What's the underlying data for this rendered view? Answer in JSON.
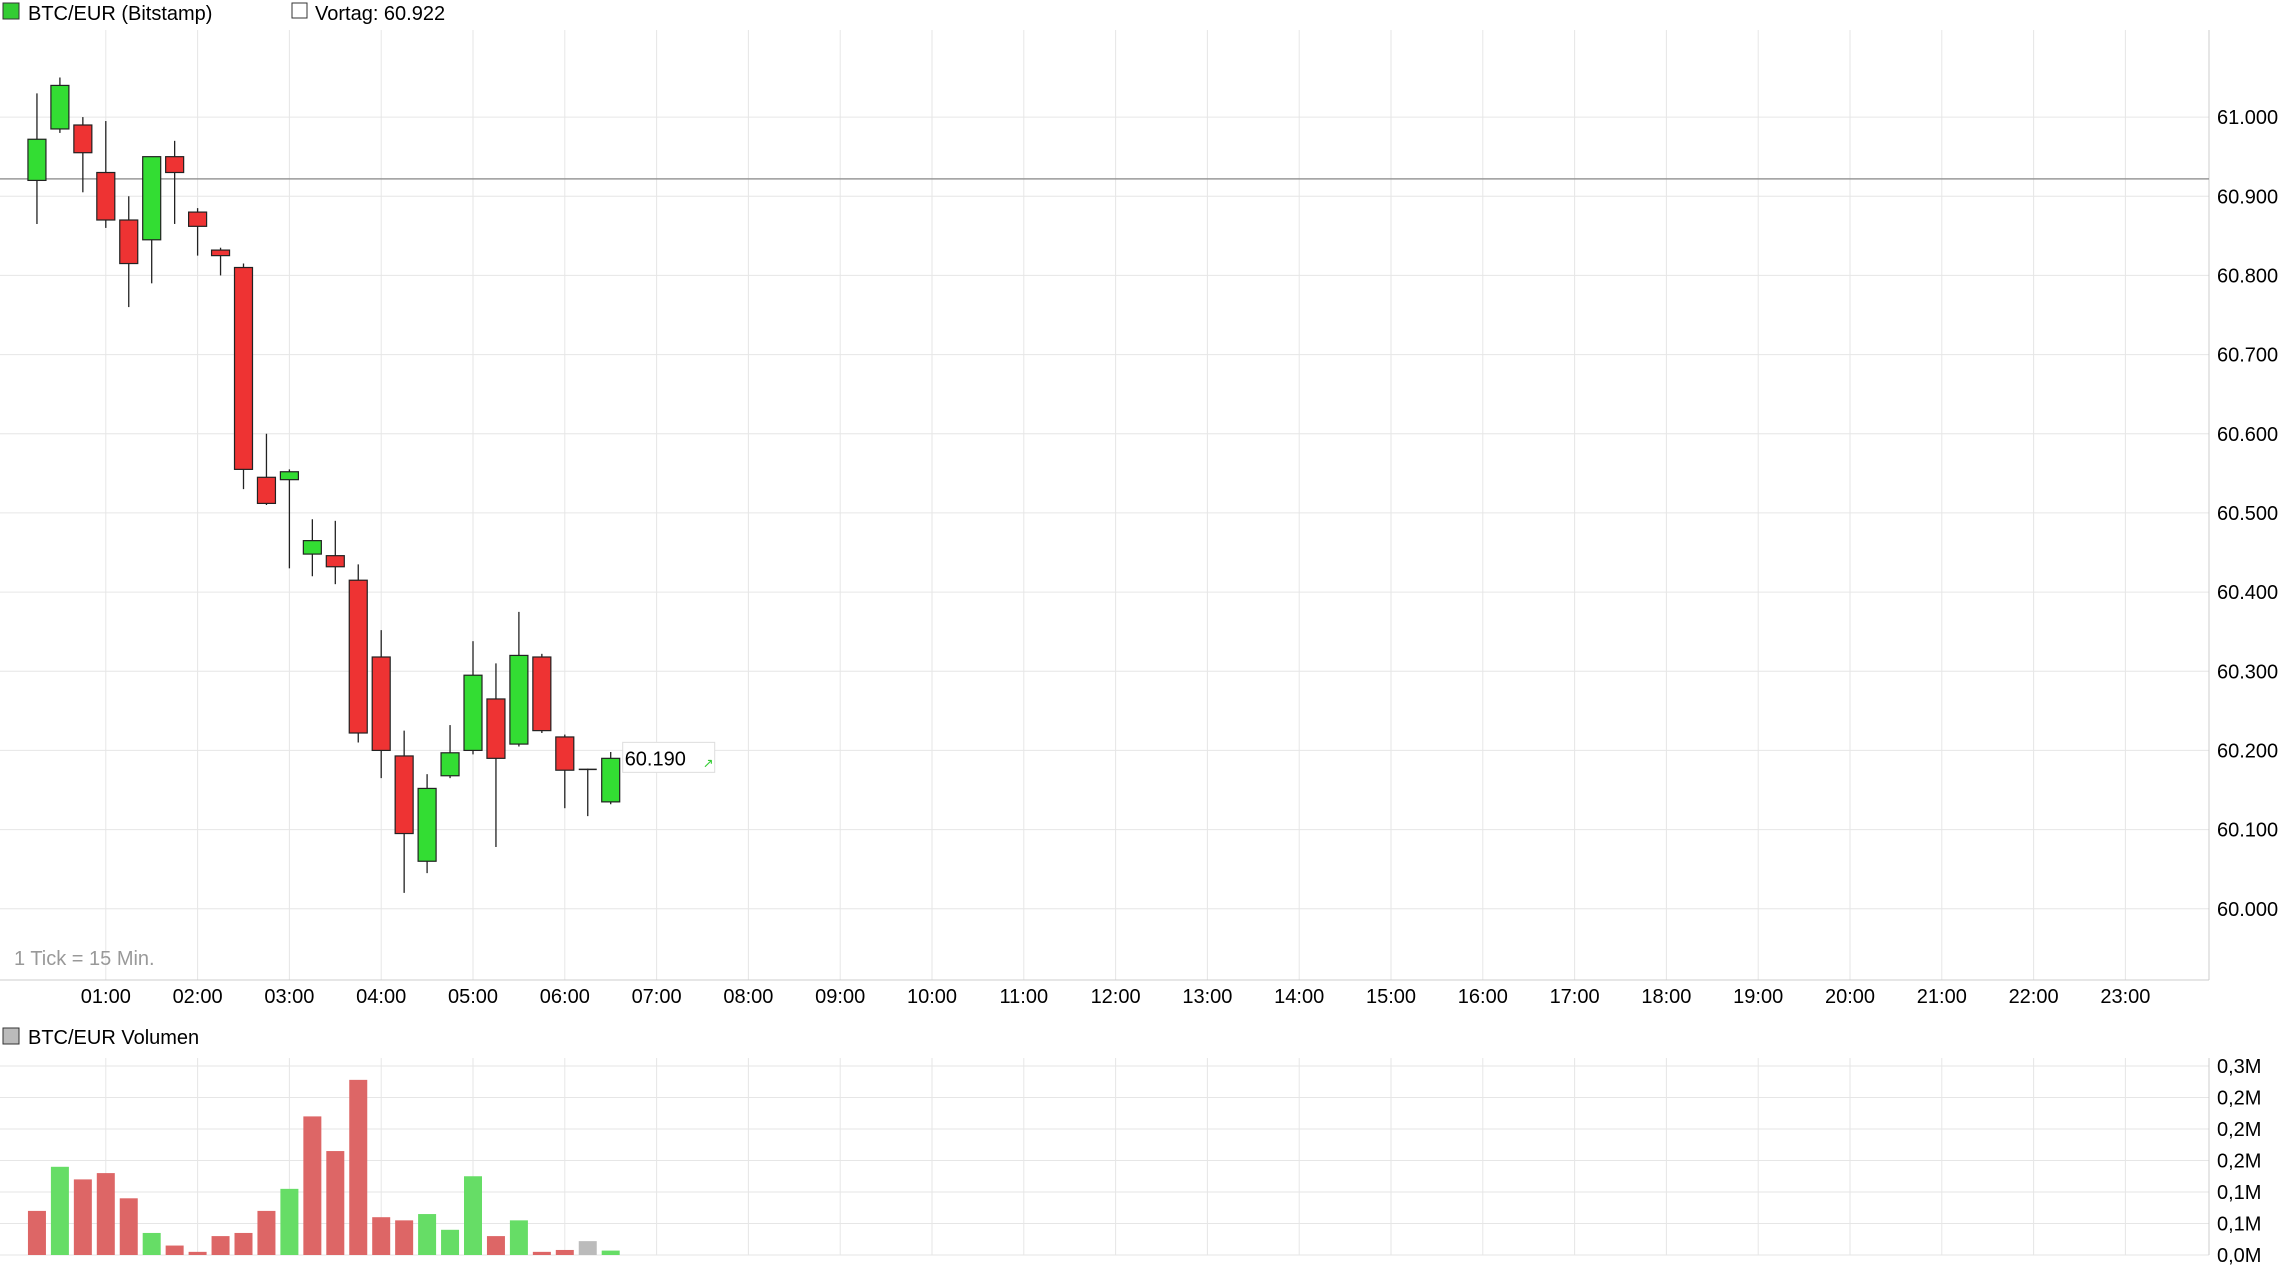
{
  "header": {
    "symbol_label": "BTC/EUR (Bitstamp)",
    "symbol_color": "#33cc33",
    "prev_close_label": "Vortag: 60.922",
    "tick_note": "1 Tick = 15 Min."
  },
  "volume_header": {
    "label": "BTC/EUR Volumen",
    "color": "#bbbbbb"
  },
  "colors": {
    "up": "#33dd33",
    "down": "#ee3333",
    "vol_up": "#66dd66",
    "vol_down": "#dd6666",
    "vol_neutral": "#bbbbbb",
    "grid": "#e6e6e6",
    "ref_line": "#999999"
  },
  "chart_data": [
    {
      "type": "candlestick",
      "title": "BTC/EUR (Bitstamp)",
      "x_tick_labels": [
        "01:00",
        "02:00",
        "03:00",
        "04:00",
        "05:00",
        "06:00",
        "07:00",
        "08:00",
        "09:00",
        "10:00",
        "11:00",
        "12:00",
        "13:00",
        "14:00",
        "15:00",
        "16:00",
        "17:00",
        "18:00",
        "19:00",
        "20:00",
        "21:00",
        "22:00",
        "23:00"
      ],
      "y_tick_labels": [
        "61.000",
        "60.900",
        "60.800",
        "60.700",
        "60.600",
        "60.500",
        "60.400",
        "60.300",
        "60.200",
        "60.100",
        "60.000"
      ],
      "y_ticks": [
        61000,
        60900,
        60800,
        60700,
        60600,
        60500,
        60400,
        60300,
        60200,
        60100,
        60000
      ],
      "ylim": [
        59910,
        61110
      ],
      "x_range_hours": [
        0,
        24
      ],
      "interval_minutes": 15,
      "reference_line": 60922,
      "last_price_label": "60.190",
      "last_price": 60190,
      "candles": [
        {
          "t": 0.25,
          "o": 60920,
          "h": 61030,
          "l": 60865,
          "c": 60972
        },
        {
          "t": 0.5,
          "o": 60985,
          "h": 61050,
          "l": 60980,
          "c": 61040
        },
        {
          "t": 0.75,
          "o": 60990,
          "h": 61000,
          "l": 60905,
          "c": 60955
        },
        {
          "t": 1.0,
          "o": 60930,
          "h": 60995,
          "l": 60860,
          "c": 60870
        },
        {
          "t": 1.25,
          "o": 60870,
          "h": 60900,
          "l": 60760,
          "c": 60815
        },
        {
          "t": 1.5,
          "o": 60845,
          "h": 60950,
          "l": 60790,
          "c": 60950
        },
        {
          "t": 1.75,
          "o": 60950,
          "h": 60970,
          "l": 60865,
          "c": 60930
        },
        {
          "t": 2.0,
          "o": 60880,
          "h": 60885,
          "l": 60825,
          "c": 60862
        },
        {
          "t": 2.25,
          "o": 60832,
          "h": 60835,
          "l": 60800,
          "c": 60825
        },
        {
          "t": 2.5,
          "o": 60810,
          "h": 60815,
          "l": 60530,
          "c": 60555
        },
        {
          "t": 2.75,
          "o": 60545,
          "h": 60600,
          "l": 60510,
          "c": 60512
        },
        {
          "t": 3.0,
          "o": 60542,
          "h": 60555,
          "l": 60430,
          "c": 60552
        },
        {
          "t": 3.25,
          "o": 60448,
          "h": 60492,
          "l": 60420,
          "c": 60465
        },
        {
          "t": 3.5,
          "o": 60446,
          "h": 60490,
          "l": 60410,
          "c": 60432
        },
        {
          "t": 3.75,
          "o": 60415,
          "h": 60435,
          "l": 60210,
          "c": 60222
        },
        {
          "t": 4.0,
          "o": 60318,
          "h": 60352,
          "l": 60165,
          "c": 60200
        },
        {
          "t": 4.25,
          "o": 60193,
          "h": 60225,
          "l": 60020,
          "c": 60095
        },
        {
          "t": 4.5,
          "o": 60060,
          "h": 60170,
          "l": 60045,
          "c": 60152
        },
        {
          "t": 4.75,
          "o": 60168,
          "h": 60232,
          "l": 60165,
          "c": 60197
        },
        {
          "t": 5.0,
          "o": 60200,
          "h": 60338,
          "l": 60195,
          "c": 60295
        },
        {
          "t": 5.25,
          "o": 60265,
          "h": 60310,
          "l": 60078,
          "c": 60190
        },
        {
          "t": 5.5,
          "o": 60208,
          "h": 60375,
          "l": 60205,
          "c": 60320
        },
        {
          "t": 5.75,
          "o": 60318,
          "h": 60322,
          "l": 60222,
          "c": 60225
        },
        {
          "t": 6.0,
          "o": 60217,
          "h": 60220,
          "l": 60127,
          "c": 60175
        },
        {
          "t": 6.25,
          "o": 60176,
          "h": 60177,
          "l": 60117,
          "c": 60176
        },
        {
          "t": 6.5,
          "o": 60135,
          "h": 60198,
          "l": 60132,
          "c": 60190
        }
      ]
    },
    {
      "type": "bar",
      "title": "BTC/EUR Volumen",
      "y_tick_labels": [
        "0,3M",
        "0,2M",
        "0,2M",
        "0,2M",
        "0,1M",
        "0,1M",
        "0,0M"
      ],
      "y_ticks": [
        0.3,
        0.25,
        0.2,
        0.15,
        0.1,
        0.05,
        0.0
      ],
      "ylim": [
        0,
        0.3
      ],
      "bars": [
        {
          "t": 0.25,
          "v": 0.07,
          "dir": "down"
        },
        {
          "t": 0.5,
          "v": 0.14,
          "dir": "up"
        },
        {
          "t": 0.75,
          "v": 0.12,
          "dir": "down"
        },
        {
          "t": 1.0,
          "v": 0.13,
          "dir": "down"
        },
        {
          "t": 1.25,
          "v": 0.09,
          "dir": "down"
        },
        {
          "t": 1.5,
          "v": 0.035,
          "dir": "up"
        },
        {
          "t": 1.75,
          "v": 0.015,
          "dir": "down"
        },
        {
          "t": 2.0,
          "v": 0.005,
          "dir": "down"
        },
        {
          "t": 2.25,
          "v": 0.03,
          "dir": "down"
        },
        {
          "t": 2.5,
          "v": 0.035,
          "dir": "down"
        },
        {
          "t": 2.75,
          "v": 0.07,
          "dir": "down"
        },
        {
          "t": 3.0,
          "v": 0.105,
          "dir": "up"
        },
        {
          "t": 3.25,
          "v": 0.22,
          "dir": "down"
        },
        {
          "t": 3.5,
          "v": 0.165,
          "dir": "down"
        },
        {
          "t": 3.75,
          "v": 0.278,
          "dir": "down"
        },
        {
          "t": 4.0,
          "v": 0.06,
          "dir": "down"
        },
        {
          "t": 4.25,
          "v": 0.055,
          "dir": "down"
        },
        {
          "t": 4.5,
          "v": 0.065,
          "dir": "up"
        },
        {
          "t": 4.75,
          "v": 0.04,
          "dir": "up"
        },
        {
          "t": 5.0,
          "v": 0.125,
          "dir": "up"
        },
        {
          "t": 5.25,
          "v": 0.03,
          "dir": "down"
        },
        {
          "t": 5.5,
          "v": 0.055,
          "dir": "up"
        },
        {
          "t": 5.75,
          "v": 0.005,
          "dir": "down"
        },
        {
          "t": 6.0,
          "v": 0.008,
          "dir": "down"
        },
        {
          "t": 6.25,
          "v": 0.022,
          "dir": "neutral"
        },
        {
          "t": 6.5,
          "v": 0.007,
          "dir": "up"
        }
      ]
    }
  ]
}
